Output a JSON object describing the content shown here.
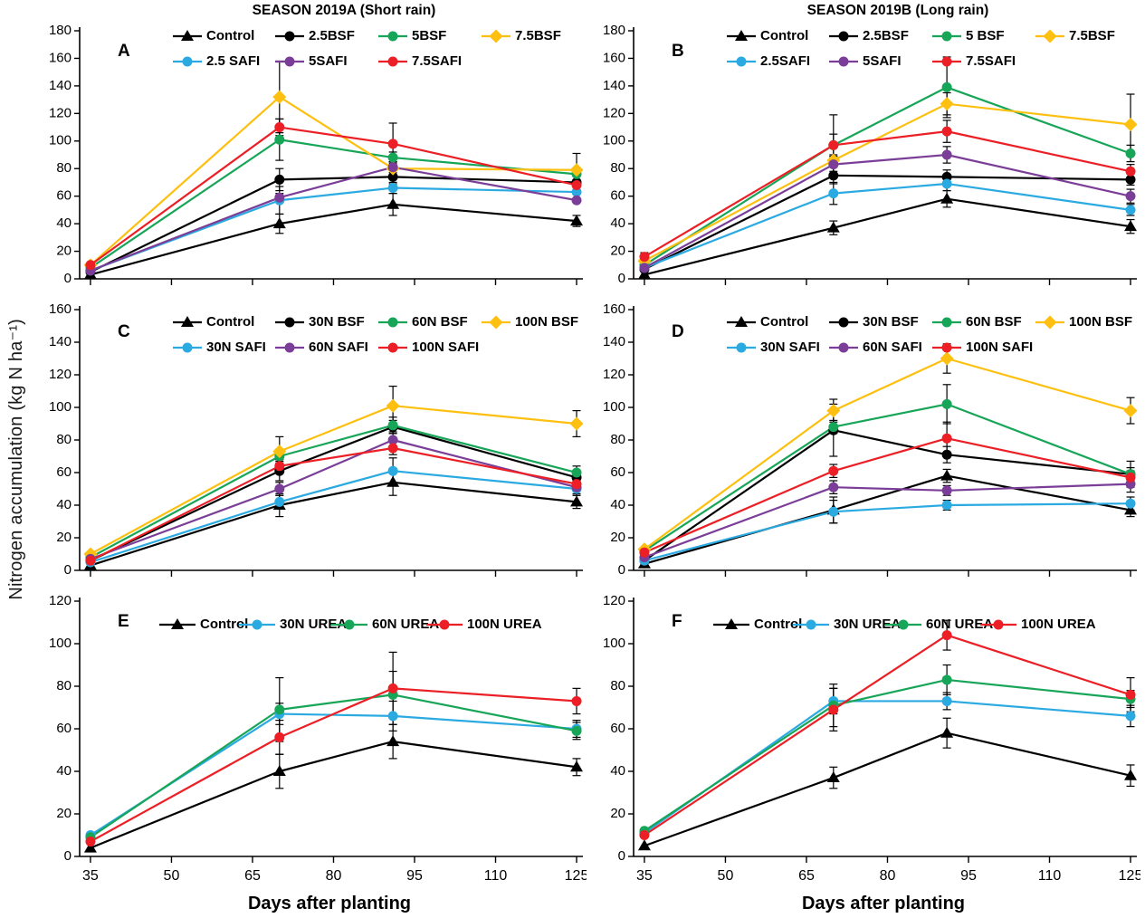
{
  "figure": {
    "y_axis_label": "Nitrogen accumulation (kg N ha⁻¹)",
    "x_axis_label": "Days after planting",
    "left_column_title": "SEASON 2019A (Short rain)",
    "right_column_title": "SEASON 2019B (Long rain)"
  },
  "colors": {
    "black": "#000000",
    "green": "#17A558",
    "yellow": "#FDC010",
    "blue": "#2BAAE2",
    "purple": "#7B3E98",
    "red": "#EB1F25"
  },
  "chart_data": [
    {
      "type": "line",
      "panel": "A",
      "row": 1,
      "title": "SEASON 2019A (Short rain)",
      "xlabel": "",
      "ylabel": "Nitrogen accumulation (kg N ha⁻¹)",
      "x": [
        35,
        70,
        91,
        125
      ],
      "xticks": [
        35,
        50,
        65,
        80,
        95,
        110,
        125
      ],
      "ylim": [
        0,
        180
      ],
      "ytick_step": 20,
      "show_x_tick_labels": false,
      "grid": false,
      "legend_rows": [
        [
          0,
          1,
          2,
          3
        ],
        [
          4,
          5,
          6
        ]
      ],
      "series": [
        {
          "name": "Control",
          "color": "#000000",
          "marker": "triangle",
          "values": [
            3,
            40,
            54,
            42
          ],
          "err": [
            0,
            7,
            8,
            4
          ]
        },
        {
          "name": "2.5BSF",
          "color": "#000000",
          "marker": "circle",
          "values": [
            5,
            72,
            74,
            70
          ],
          "err": [
            0,
            8,
            5,
            0
          ]
        },
        {
          "name": "5BSF",
          "color": "#17A558",
          "marker": "circle",
          "values": [
            8,
            101,
            88,
            76
          ],
          "err": [
            0,
            15,
            4,
            0
          ]
        },
        {
          "name": "7.5BSF",
          "color": "#FDC010",
          "marker": "diamond",
          "values": [
            10,
            132,
            80,
            79
          ],
          "err": [
            0,
            26,
            5,
            12
          ]
        },
        {
          "name": "2.5 SAFI",
          "color": "#2BAAE2",
          "marker": "circle",
          "values": [
            6,
            57,
            66,
            63
          ],
          "err": [
            0,
            10,
            4,
            0
          ]
        },
        {
          "name": "5SAFI",
          "color": "#7B3E98",
          "marker": "circle",
          "values": [
            6,
            59,
            81,
            57
          ],
          "err": [
            0,
            3,
            4,
            0
          ]
        },
        {
          "name": "7.5SAFI",
          "color": "#EB1F25",
          "marker": "circle",
          "values": [
            10,
            110,
            98,
            68
          ],
          "err": [
            0,
            6,
            15,
            4
          ]
        }
      ]
    },
    {
      "type": "line",
      "panel": "B",
      "row": 1,
      "title": "SEASON 2019B (Long rain)",
      "xlabel": "",
      "ylabel": "Nitrogen accumulation (kg N ha⁻¹)",
      "x": [
        35,
        70,
        91,
        125
      ],
      "xticks": [
        35,
        50,
        65,
        80,
        95,
        110,
        125
      ],
      "ylim": [
        0,
        180
      ],
      "ytick_step": 20,
      "show_x_tick_labels": false,
      "grid": false,
      "legend_rows": [
        [
          0,
          1,
          2,
          3
        ],
        [
          4,
          5,
          6
        ]
      ],
      "series": [
        {
          "name": "Control",
          "color": "#000000",
          "marker": "triangle",
          "values": [
            3,
            37,
            58,
            38
          ],
          "err": [
            0,
            5,
            6,
            5
          ]
        },
        {
          "name": "2.5BSF",
          "color": "#000000",
          "marker": "circle",
          "values": [
            7,
            75,
            74,
            72
          ],
          "err": [
            0,
            6,
            5,
            4
          ]
        },
        {
          "name": "5 BSF",
          "color": "#17A558",
          "marker": "circle",
          "values": [
            10,
            97,
            139,
            91
          ],
          "err": [
            0,
            8,
            22,
            6
          ]
        },
        {
          "name": "7.5BSF",
          "color": "#FDC010",
          "marker": "diamond",
          "values": [
            13,
            86,
            127,
            112
          ],
          "err": [
            0,
            4,
            8,
            22
          ]
        },
        {
          "name": "2.5SAFI",
          "color": "#2BAAE2",
          "marker": "circle",
          "values": [
            8,
            62,
            69,
            50
          ],
          "err": [
            0,
            8,
            5,
            4
          ]
        },
        {
          "name": "5SAFI",
          "color": "#7B3E98",
          "marker": "circle",
          "values": [
            8,
            83,
            90,
            60
          ],
          "err": [
            2,
            5,
            6,
            5
          ]
        },
        {
          "name": "7.5SAFI",
          "color": "#EB1F25",
          "marker": "circle",
          "values": [
            16,
            97,
            107,
            78
          ],
          "err": [
            3,
            22,
            8,
            5
          ]
        }
      ]
    },
    {
      "type": "line",
      "panel": "C",
      "row": 2,
      "title": "",
      "xlabel": "",
      "ylabel": "Nitrogen accumulation (kg N ha⁻¹)",
      "x": [
        35,
        70,
        91,
        125
      ],
      "xticks": [
        35,
        50,
        65,
        80,
        95,
        110,
        125
      ],
      "ylim": [
        0,
        160
      ],
      "ytick_step": 20,
      "show_x_tick_labels": false,
      "grid": false,
      "legend_rows": [
        [
          0,
          1,
          2,
          3
        ],
        [
          4,
          5,
          6
        ]
      ],
      "series": [
        {
          "name": "Control",
          "color": "#000000",
          "marker": "triangle",
          "values": [
            3,
            40,
            54,
            42
          ],
          "err": [
            0,
            7,
            8,
            4
          ]
        },
        {
          "name": "30N BSF",
          "color": "#000000",
          "marker": "circle",
          "values": [
            6,
            61,
            88,
            57
          ],
          "err": [
            0,
            6,
            4,
            4
          ]
        },
        {
          "name": "60N BSF",
          "color": "#17A558",
          "marker": "circle",
          "values": [
            8,
            70,
            89,
            60
          ],
          "err": [
            0,
            4,
            5,
            4
          ]
        },
        {
          "name": "100N BSF",
          "color": "#FDC010",
          "marker": "diamond",
          "values": [
            10,
            73,
            101,
            90
          ],
          "err": [
            0,
            9,
            12,
            8
          ]
        },
        {
          "name": "30N SAFI",
          "color": "#2BAAE2",
          "marker": "circle",
          "values": [
            5,
            42,
            61,
            50
          ],
          "err": [
            0,
            4,
            8,
            4
          ]
        },
        {
          "name": "60N SAFI",
          "color": "#7B3E98",
          "marker": "circle",
          "values": [
            7,
            50,
            80,
            51
          ],
          "err": [
            0,
            4,
            5,
            4
          ]
        },
        {
          "name": "100N SAFI",
          "color": "#EB1F25",
          "marker": "circle",
          "values": [
            6,
            64,
            75,
            53
          ],
          "err": [
            0,
            4,
            4,
            4
          ]
        }
      ]
    },
    {
      "type": "line",
      "panel": "D",
      "row": 2,
      "title": "",
      "xlabel": "",
      "ylabel": "Nitrogen accumulation (kg N ha⁻¹)",
      "x": [
        35,
        70,
        91,
        125
      ],
      "xticks": [
        35,
        50,
        65,
        80,
        95,
        110,
        125
      ],
      "ylim": [
        0,
        160
      ],
      "ytick_step": 20,
      "show_x_tick_labels": false,
      "grid": false,
      "legend_rows": [
        [
          0,
          1,
          2,
          3
        ],
        [
          4,
          5,
          6
        ]
      ],
      "series": [
        {
          "name": "Control",
          "color": "#000000",
          "marker": "triangle",
          "values": [
            4,
            37,
            58,
            37
          ],
          "err": [
            0,
            8,
            4,
            4
          ]
        },
        {
          "name": "30N BSF",
          "color": "#000000",
          "marker": "circle",
          "values": [
            6,
            86,
            71,
            59
          ],
          "err": [
            0,
            16,
            5,
            8
          ]
        },
        {
          "name": "60N BSF",
          "color": "#17A558",
          "marker": "circle",
          "values": [
            12,
            88,
            102,
            59
          ],
          "err": [
            0,
            4,
            12,
            4
          ]
        },
        {
          "name": "100N BSF",
          "color": "#FDC010",
          "marker": "diamond",
          "values": [
            13,
            98,
            130,
            98
          ],
          "err": [
            0,
            7,
            9,
            8
          ]
        },
        {
          "name": "30N SAFI",
          "color": "#2BAAE2",
          "marker": "circle",
          "values": [
            6,
            36,
            40,
            41
          ],
          "err": [
            0,
            7,
            3,
            4
          ]
        },
        {
          "name": "60N SAFI",
          "color": "#7B3E98",
          "marker": "circle",
          "values": [
            8,
            51,
            49,
            53
          ],
          "err": [
            0,
            4,
            3,
            5
          ]
        },
        {
          "name": "100N SAFI",
          "color": "#EB1F25",
          "marker": "circle",
          "values": [
            11,
            61,
            81,
            57
          ],
          "err": [
            0,
            4,
            10,
            4
          ]
        }
      ]
    },
    {
      "type": "line",
      "panel": "E",
      "row": 3,
      "title": "",
      "xlabel": "Days after planting",
      "ylabel": "Nitrogen accumulation (kg N ha⁻¹)",
      "x": [
        35,
        70,
        91,
        125
      ],
      "xticks": [
        35,
        50,
        65,
        80,
        95,
        110,
        125
      ],
      "ylim": [
        0,
        120
      ],
      "ytick_step": 20,
      "show_x_tick_labels": true,
      "grid": false,
      "legend_rows": [
        [
          0,
          1,
          2,
          3
        ]
      ],
      "series": [
        {
          "name": "Control",
          "color": "#000000",
          "marker": "triangle",
          "values": [
            4,
            40,
            54,
            42
          ],
          "err": [
            0,
            8,
            8,
            4
          ]
        },
        {
          "name": "30N UREA",
          "color": "#2BAAE2",
          "marker": "circle",
          "values": [
            10,
            67,
            66,
            60
          ],
          "err": [
            0,
            5,
            7,
            4
          ]
        },
        {
          "name": "60N UREA",
          "color": "#17A558",
          "marker": "circle",
          "values": [
            9,
            69,
            76,
            59
          ],
          "err": [
            0,
            15,
            11,
            4
          ]
        },
        {
          "name": "100N UREA",
          "color": "#EB1F25",
          "marker": "circle",
          "values": [
            7,
            56,
            79,
            73
          ],
          "err": [
            0,
            8,
            17,
            6
          ]
        }
      ]
    },
    {
      "type": "line",
      "panel": "F",
      "row": 3,
      "title": "",
      "xlabel": "Days after planting",
      "ylabel": "Nitrogen accumulation (kg N ha⁻¹)",
      "x": [
        35,
        70,
        91,
        125
      ],
      "xticks": [
        35,
        50,
        65,
        80,
        95,
        110,
        125
      ],
      "ylim": [
        0,
        120
      ],
      "ytick_step": 20,
      "show_x_tick_labels": true,
      "grid": false,
      "legend_rows": [
        [
          0,
          1,
          2,
          3
        ]
      ],
      "series": [
        {
          "name": "Control",
          "color": "#000000",
          "marker": "triangle",
          "values": [
            5,
            37,
            58,
            38
          ],
          "err": [
            0,
            5,
            7,
            5
          ]
        },
        {
          "name": "30N UREA",
          "color": "#2BAAE2",
          "marker": "circle",
          "values": [
            11,
            73,
            73,
            66
          ],
          "err": [
            0,
            6,
            4,
            5
          ]
        },
        {
          "name": "60N UREA",
          "color": "#17A558",
          "marker": "circle",
          "values": [
            12,
            71,
            83,
            74
          ],
          "err": [
            0,
            10,
            7,
            4
          ]
        },
        {
          "name": "100N UREA",
          "color": "#EB1F25",
          "marker": "circle",
          "values": [
            10,
            69,
            104,
            76
          ],
          "err": [
            0,
            10,
            7,
            8
          ]
        }
      ]
    }
  ]
}
